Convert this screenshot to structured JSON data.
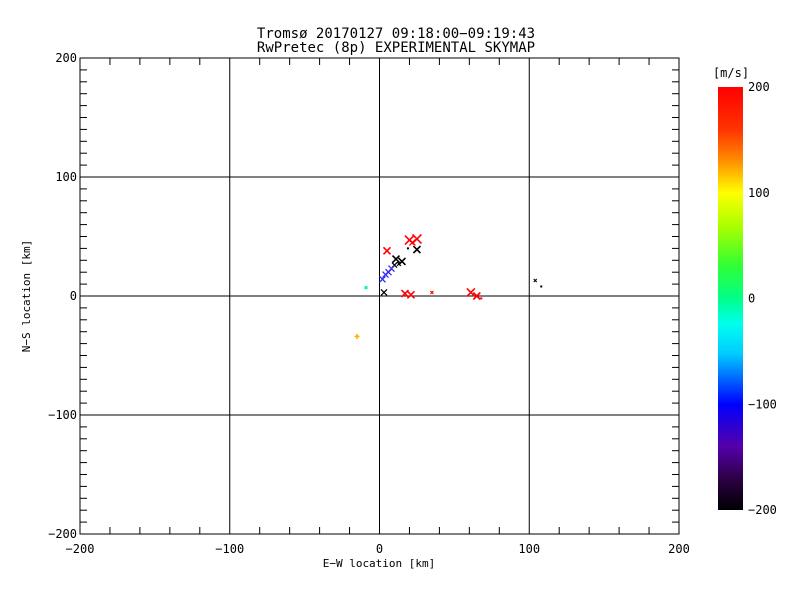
{
  "figure": {
    "background": "#ffffff",
    "foreground": "#000000"
  },
  "chart_data": {
    "type": "scatter",
    "title": "Tromsø 20170127 09:18:00−09:19:43",
    "subtitle": "RwPretec (8p) EXPERIMENTAL SKYMAP",
    "xlabel": "E−W location [km]",
    "ylabel": "N−S location [km]",
    "xlim": [
      -200,
      200
    ],
    "ylim": [
      -200,
      200
    ],
    "xticks": [
      -200,
      -100,
      0,
      100,
      200
    ],
    "xtick_labels": [
      "−200",
      "−100",
      "0",
      "100",
      "200"
    ],
    "yticks": [
      -200,
      -100,
      0,
      100,
      200
    ],
    "ytick_labels": [
      "−200",
      "−100",
      "0",
      "100",
      "200"
    ],
    "x_minor_step": 20,
    "y_minor_step": 10,
    "grid": true,
    "legend": "none",
    "colorbar": {
      "label": "[m/s]",
      "lim": [
        -200,
        200
      ],
      "ticks": [
        200,
        100,
        0,
        -100,
        -200
      ],
      "tick_labels": [
        "200",
        "100",
        "0",
        "−100",
        "−200"
      ],
      "gradient_stops": [
        {
          "pos": 0.0,
          "color": "#ff0000"
        },
        {
          "pos": 0.1,
          "color": "#ff3300"
        },
        {
          "pos": 0.17,
          "color": "#ff8800"
        },
        {
          "pos": 0.25,
          "color": "#ffff00"
        },
        {
          "pos": 0.33,
          "color": "#aaff00"
        },
        {
          "pos": 0.42,
          "color": "#33ff33"
        },
        {
          "pos": 0.5,
          "color": "#00ff88"
        },
        {
          "pos": 0.56,
          "color": "#00ffee"
        },
        {
          "pos": 0.63,
          "color": "#00ccff"
        },
        {
          "pos": 0.75,
          "color": "#0000ff"
        },
        {
          "pos": 0.85,
          "color": "#5500aa"
        },
        {
          "pos": 0.93,
          "color": "#2a0040"
        },
        {
          "pos": 1.0,
          "color": "#000000"
        }
      ]
    },
    "points": [
      {
        "x": 20,
        "y": 47,
        "v_mps": 200,
        "color": "#ff0000",
        "marker": "x",
        "size": 9
      },
      {
        "x": 25,
        "y": 48,
        "v_mps": 200,
        "color": "#ff0000",
        "marker": "x",
        "size": 9
      },
      {
        "x": 22,
        "y": 45,
        "v_mps": 200,
        "color": "#ff0000",
        "marker": "x",
        "size": 6
      },
      {
        "x": 5,
        "y": 38,
        "v_mps": 200,
        "color": "#ff0000",
        "marker": "x",
        "size": 7
      },
      {
        "x": 25,
        "y": 39,
        "v_mps": -200,
        "color": "#000000",
        "marker": "x",
        "size": 7
      },
      {
        "x": 19,
        "y": 40,
        "v_mps": -200,
        "color": "#000000",
        "marker": "dot",
        "size": 2
      },
      {
        "x": 11,
        "y": 31,
        "v_mps": -200,
        "color": "#000000",
        "marker": "x",
        "size": 7
      },
      {
        "x": 15,
        "y": 29,
        "v_mps": -200,
        "color": "#000000",
        "marker": "x",
        "size": 7
      },
      {
        "x": 13,
        "y": 27,
        "v_mps": -200,
        "color": "#000000",
        "marker": "x",
        "size": 4
      },
      {
        "x": 10,
        "y": 26,
        "v_mps": -190,
        "color": "#000000",
        "marker": "x",
        "size": 5
      },
      {
        "x": 8,
        "y": 23,
        "v_mps": -130,
        "color": "#4433ee",
        "marker": "x",
        "size": 6
      },
      {
        "x": 6,
        "y": 20,
        "v_mps": -125,
        "color": "#3a2af0",
        "marker": "x",
        "size": 6
      },
      {
        "x": 4,
        "y": 18,
        "v_mps": -115,
        "color": "#2b2bff",
        "marker": "x",
        "size": 6
      },
      {
        "x": 2,
        "y": 14,
        "v_mps": -115,
        "color": "#2b2bff",
        "marker": "x",
        "size": 6
      },
      {
        "x": -9,
        "y": 7,
        "v_mps": -20,
        "color": "#00f5b0",
        "marker": "dot",
        "size": 3
      },
      {
        "x": 3,
        "y": 3,
        "v_mps": -200,
        "color": "#000000",
        "marker": "x",
        "size": 6
      },
      {
        "x": 17,
        "y": 2,
        "v_mps": 200,
        "color": "#ff0000",
        "marker": "x",
        "size": 7
      },
      {
        "x": 21,
        "y": 1,
        "v_mps": 200,
        "color": "#ff0000",
        "marker": "x",
        "size": 7
      },
      {
        "x": 35,
        "y": 3,
        "v_mps": 200,
        "color": "#ff0000",
        "marker": "x",
        "size": 3
      },
      {
        "x": 61,
        "y": 3,
        "v_mps": 200,
        "color": "#ff0000",
        "marker": "x",
        "size": 8
      },
      {
        "x": 65,
        "y": 0,
        "v_mps": 200,
        "color": "#ff0000",
        "marker": "x",
        "size": 7
      },
      {
        "x": 68,
        "y": -2,
        "v_mps": 200,
        "color": "#ff0000",
        "marker": "dot",
        "size": 2
      },
      {
        "x": 104,
        "y": 13,
        "v_mps": -200,
        "color": "#000000",
        "marker": "x",
        "size": 3
      },
      {
        "x": 108,
        "y": 8,
        "v_mps": -200,
        "color": "#000000",
        "marker": "dot",
        "size": 2
      },
      {
        "x": -15,
        "y": -34,
        "v_mps": 130,
        "color": "#ffb300",
        "marker": "plus",
        "size": 5
      }
    ]
  }
}
